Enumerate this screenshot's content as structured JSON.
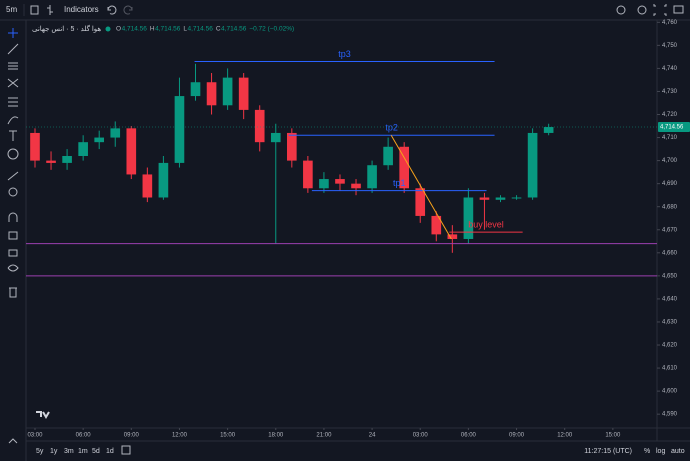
{
  "toolbar": {
    "interval": "5m",
    "indicators": "Indicators"
  },
  "legend": {
    "symbol": "هوا گلد · 5 · انس جهانی",
    "items": [
      {
        "label": "O",
        "value": "4,714.56"
      },
      {
        "label": "H",
        "value": "4,714.56"
      },
      {
        "label": "L",
        "value": "4,714.56"
      },
      {
        "label": "C",
        "value": "4,714.56"
      }
    ],
    "change": "−0.72 (−0.02%)"
  },
  "bottom_bar": {
    "ranges": [
      "5y",
      "1y",
      "3m",
      "1m",
      "5d",
      "1d"
    ],
    "clock": "11:27:15 (UTC)",
    "options": [
      "%",
      "log",
      "auto"
    ]
  },
  "chart_data": {
    "type": "candlestick",
    "x": [
      3,
      4,
      5,
      6,
      7,
      8,
      9,
      10,
      11,
      12,
      13,
      14,
      15,
      16,
      17,
      18,
      19,
      20,
      21,
      22,
      23,
      24,
      25,
      26,
      27,
      28,
      29,
      30,
      31,
      32,
      33,
      34,
      35
    ],
    "open": [
      4712,
      4700,
      4699,
      4702,
      4708,
      4710,
      4714,
      4694,
      4684,
      4699,
      4728,
      4734,
      4724,
      4736,
      4722,
      4708,
      4712,
      4700,
      4688,
      4692,
      4690,
      4688,
      4698,
      4706,
      4688,
      4676,
      4668,
      4666,
      4684,
      4683,
      4684,
      4684,
      4712
    ],
    "high": [
      4714,
      4704,
      4705,
      4711,
      4713,
      4717,
      4715,
      4697,
      4702,
      4736,
      4742,
      4738,
      4740,
      4738,
      4724,
      4716,
      4714,
      4702,
      4695,
      4694,
      4692,
      4700,
      4710,
      4708,
      4690,
      4678,
      4672,
      4688,
      4686,
      4685,
      4685,
      4714,
      4716
    ],
    "low": [
      4697,
      4696,
      4696,
      4700,
      4705,
      4706,
      4692,
      4682,
      4683,
      4697,
      4726,
      4720,
      4722,
      4718,
      4704,
      4664,
      4697,
      4686,
      4686,
      4687,
      4685,
      4686,
      4696,
      4686,
      4673,
      4665,
      4660,
      4664,
      4670,
      4682,
      4683,
      4683,
      4711
    ],
    "close": [
      4700,
      4699,
      4702,
      4708,
      4710,
      4714,
      4694,
      4684,
      4699,
      4728,
      4734,
      4724,
      4736,
      4722,
      4708,
      4712,
      4700,
      4688,
      4692,
      4690,
      4688,
      4698,
      4706,
      4688,
      4676,
      4668,
      4666,
      4684,
      4683,
      4684,
      4684,
      4712,
      4714.56
    ],
    "up_color": "#089981",
    "down_color": "#f23645",
    "xlim": [
      2.44,
      41.75
    ],
    "ylim": [
      4584,
      4761
    ],
    "xticks": [
      {
        "value": 3,
        "label": "03:00"
      },
      {
        "value": 6,
        "label": "06:00"
      },
      {
        "value": 9,
        "label": "09:00"
      },
      {
        "value": 12,
        "label": "12:00"
      },
      {
        "value": 15,
        "label": "15:00"
      },
      {
        "value": 18,
        "label": "18:00"
      },
      {
        "value": 21,
        "label": "21:00"
      },
      24,
      {
        "value": 27,
        "label": "03:00"
      },
      {
        "value": 30,
        "label": "06:00"
      },
      {
        "value": 33,
        "label": "09:00"
      },
      {
        "value": 36,
        "label": "12:00"
      },
      {
        "value": 39,
        "label": "15:00"
      }
    ],
    "yticks": [
      {
        "value": 4590,
        "label": "4,590"
      },
      {
        "value": 4600,
        "label": "4,600"
      },
      {
        "value": 4610,
        "label": "4,610"
      },
      {
        "value": 4620,
        "label": "4,620"
      },
      {
        "value": 4630,
        "label": "4,630"
      },
      {
        "value": 4640,
        "label": "4,640"
      },
      {
        "value": 4650,
        "label": "4,650"
      },
      {
        "value": 4660,
        "label": "4,660"
      },
      {
        "value": 4670,
        "label": "4,670"
      },
      {
        "value": 4680,
        "label": "4,680"
      },
      {
        "value": 4690,
        "label": "4,690"
      },
      {
        "value": 4700,
        "label": "4,700"
      },
      {
        "value": 4710,
        "label": "4,710"
      },
      {
        "value": 4720,
        "label": "4,720"
      },
      {
        "value": 4730,
        "label": "4,730"
      },
      {
        "value": 4740,
        "label": "4,740"
      },
      {
        "value": 4750,
        "label": "4,750"
      },
      {
        "value": 4760,
        "label": "4,760"
      }
    ],
    "last_price": {
      "value": 4714.56,
      "label": "4,714.56"
    },
    "hlines": [
      {
        "label": "tp3",
        "price": 4743,
        "x": [
          12.94,
          31.63
        ],
        "color": "#2962ff"
      },
      {
        "label": "tp2",
        "price": 4711,
        "x": [
          18.81,
          31.63
        ],
        "color": "#2962ff"
      },
      {
        "label": "tp1",
        "price": 4687,
        "x": [
          20.25,
          31.13
        ],
        "color": "#2962ff"
      },
      {
        "label": "buy level",
        "price": 4669,
        "x": [
          28.81,
          33.38
        ],
        "color": "#f23645"
      },
      {
        "price": 4664,
        "color": "#9c3fb0"
      },
      {
        "price": 4650,
        "color": "#9c3fb0"
      }
    ],
    "trendline": {
      "x": [
        25.19,
        28.94
      ],
      "price": [
        4711,
        4666
      ],
      "color": "#f7a21b"
    }
  }
}
